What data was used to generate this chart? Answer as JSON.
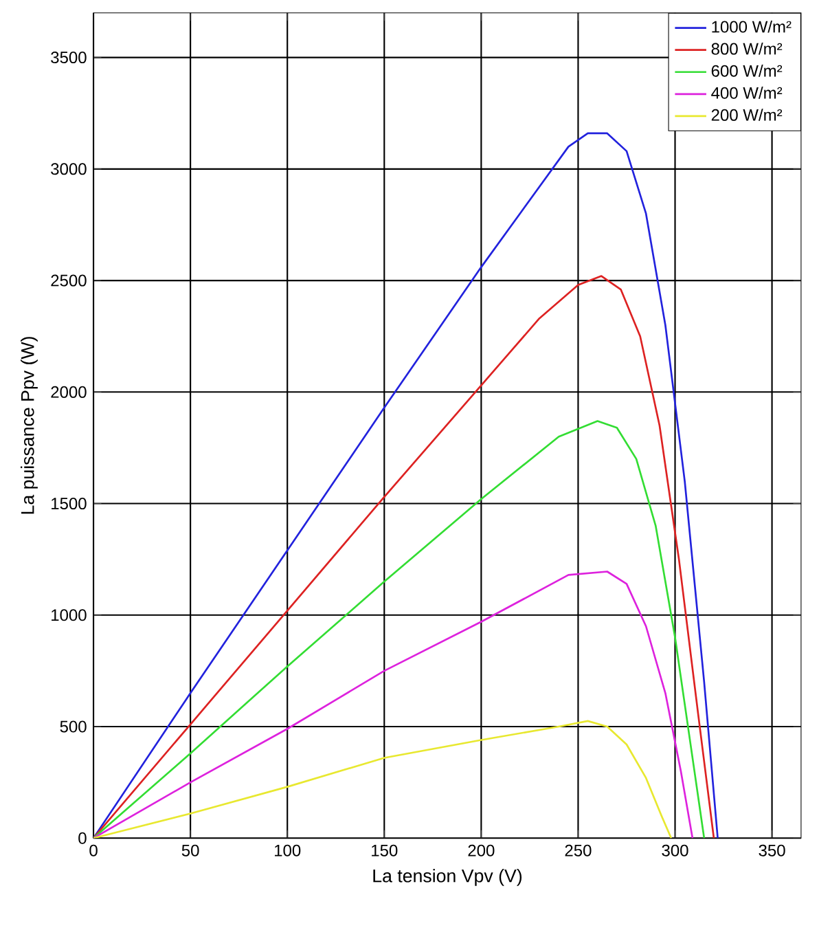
{
  "chart_data": {
    "type": "line",
    "xlabel": "La tension Vpv (V)",
    "ylabel": "La puissance Ppv (W)",
    "xlim": [
      0,
      365
    ],
    "ylim": [
      0,
      3700
    ],
    "xticks": [
      0,
      50,
      100,
      150,
      200,
      250,
      300,
      350
    ],
    "yticks": [
      0,
      500,
      1000,
      1500,
      2000,
      2500,
      3000,
      3500
    ],
    "grid": true,
    "legend": "top right",
    "marker": "none",
    "line_style": "solid",
    "series": [
      {
        "name": "1000 W/m²",
        "color": "#2222dd",
        "x": [
          0,
          50,
          100,
          150,
          200,
          220,
          245,
          255,
          265,
          275,
          285,
          295,
          305,
          315,
          322
        ],
        "values": [
          0,
          650,
          1290,
          1930,
          2560,
          2800,
          3100,
          3160,
          3160,
          3080,
          2800,
          2300,
          1600,
          700,
          0
        ]
      },
      {
        "name": "800 W/m²",
        "color": "#dd2222",
        "x": [
          0,
          50,
          100,
          150,
          200,
          230,
          250,
          262,
          272,
          282,
          292,
          302,
          312,
          320
        ],
        "values": [
          0,
          510,
          1020,
          1530,
          2030,
          2330,
          2480,
          2520,
          2460,
          2250,
          1850,
          1250,
          550,
          0
        ]
      },
      {
        "name": "600 W/m²",
        "color": "#33dd33",
        "x": [
          0,
          50,
          100,
          150,
          200,
          240,
          260,
          270,
          280,
          290,
          300,
          310,
          315
        ],
        "values": [
          0,
          380,
          770,
          1150,
          1520,
          1800,
          1870,
          1840,
          1700,
          1400,
          900,
          300,
          0
        ]
      },
      {
        "name": "400 W/m²",
        "color": "#dd22dd",
        "x": [
          0,
          50,
          100,
          150,
          200,
          245,
          265,
          275,
          285,
          295,
          303,
          309
        ],
        "values": [
          0,
          250,
          490,
          750,
          970,
          1180,
          1195,
          1140,
          950,
          650,
          300,
          0
        ]
      },
      {
        "name": "200 W/m²",
        "color": "#e8e830",
        "x": [
          0,
          50,
          100,
          150,
          200,
          240,
          255,
          265,
          275,
          285,
          293,
          298
        ],
        "values": [
          0,
          110,
          230,
          360,
          440,
          500,
          525,
          500,
          420,
          270,
          100,
          0
        ]
      }
    ]
  }
}
